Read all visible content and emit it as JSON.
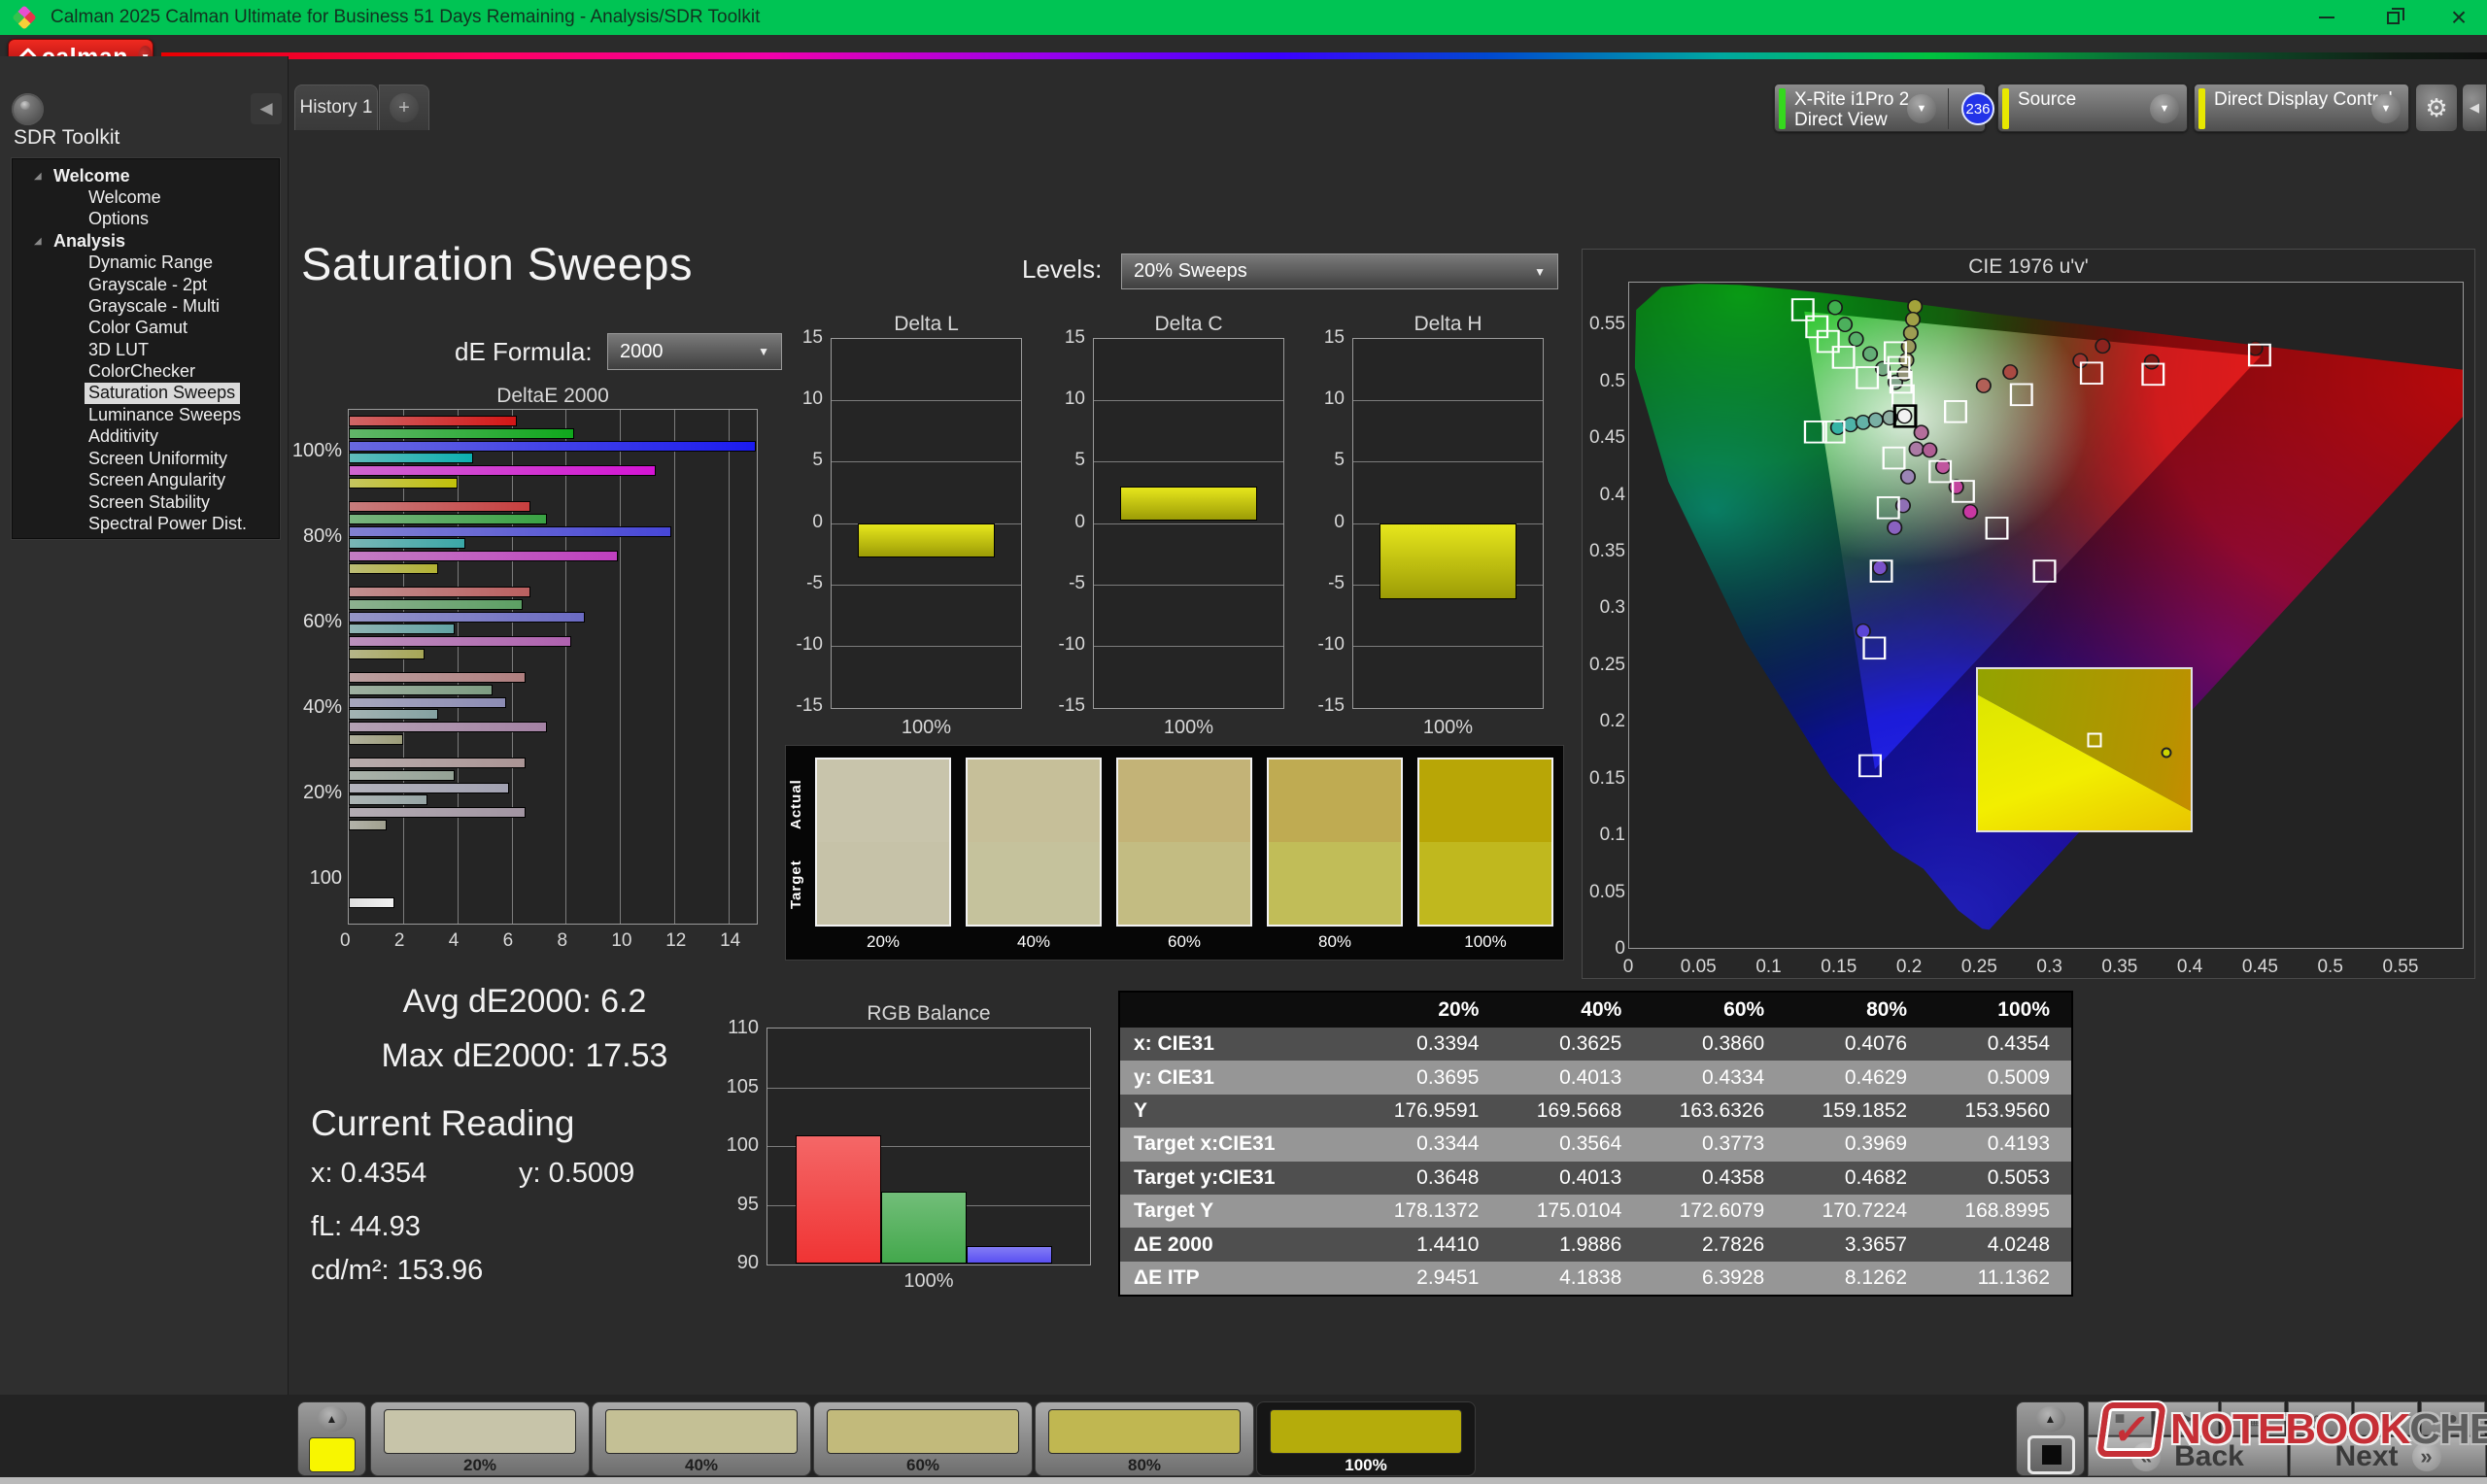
{
  "window": {
    "title": "Calman 2025 Calman Ultimate for Business 51 Days Remaining  - Analysis/SDR Toolkit"
  },
  "brand": {
    "logo_text": "calman"
  },
  "sidebar": {
    "toolkit_label": "SDR Toolkit",
    "tree": [
      {
        "label": "Welcome",
        "type": "group"
      },
      {
        "label": "Welcome",
        "type": "item"
      },
      {
        "label": "Options",
        "type": "item"
      },
      {
        "label": "Analysis",
        "type": "group"
      },
      {
        "label": "Dynamic Range",
        "type": "item"
      },
      {
        "label": "Grayscale - 2pt",
        "type": "item"
      },
      {
        "label": "Grayscale - Multi",
        "type": "item"
      },
      {
        "label": "Color Gamut",
        "type": "item"
      },
      {
        "label": "3D LUT",
        "type": "item"
      },
      {
        "label": "ColorChecker",
        "type": "item"
      },
      {
        "label": "Saturation Sweeps",
        "type": "item",
        "selected": true
      },
      {
        "label": "Luminance Sweeps",
        "type": "item"
      },
      {
        "label": "Additivity",
        "type": "item"
      },
      {
        "label": "Screen Uniformity",
        "type": "item"
      },
      {
        "label": "Screen Angularity",
        "type": "item"
      },
      {
        "label": "Screen Stability",
        "type": "item"
      },
      {
        "label": "Spectral Power Dist.",
        "type": "item"
      }
    ]
  },
  "tabs": {
    "active": "History 1",
    "add_label": "+"
  },
  "topbar": {
    "meter": {
      "line1": "X-Rite i1Pro 2",
      "line2": "Direct View",
      "badge": "236",
      "accent": "#35d81e"
    },
    "source": {
      "label": "Source",
      "accent": "#e8e800"
    },
    "display": {
      "label": "Direct Display Control",
      "accent": "#e8e800"
    },
    "gear_icon": "⚙",
    "collapse_icon": "◀"
  },
  "page": {
    "title": "Saturation Sweeps",
    "levels_label": "Levels:",
    "levels_value": "20% Sweeps",
    "formula_label": "dE Formula:",
    "formula_value": "2000"
  },
  "readout": {
    "avg": "Avg dE2000: 6.2",
    "max": "Max dE2000: 17.53",
    "current_title": "Current Reading",
    "x": "x: 0.4354",
    "y": "y: 0.5009",
    "fl": "fL: 44.93",
    "cdm2": "cd/m²: 153.96"
  },
  "saturation_swatches": {
    "row_labels": [
      "Actual",
      "Target"
    ],
    "levels": [
      "20%",
      "40%",
      "60%",
      "80%",
      "100%"
    ],
    "actual": [
      "#c8c4ab",
      "#c6bf99",
      "#c3b377",
      "#bfab52",
      "#b8a606"
    ],
    "target": [
      "#c6c2a8",
      "#c5c29c",
      "#c3bc82",
      "#c1bd58",
      "#c0b81e"
    ]
  },
  "patch_bar": {
    "preview_color": "#f8f600",
    "cards": [
      {
        "label": "20%",
        "color": "#c7c4a9"
      },
      {
        "label": "40%",
        "color": "#c4c095"
      },
      {
        "label": "60%",
        "color": "#c2ba7b"
      },
      {
        "label": "80%",
        "color": "#c0b751"
      },
      {
        "label": "100%",
        "color": "#b5ac0b"
      }
    ],
    "selected_index": 4
  },
  "toolbar": {
    "icons": [
      {
        "name": "stop-icon",
        "glyph": "■"
      },
      {
        "name": "play-icon",
        "glyph": "▶"
      },
      {
        "name": "grid-icon",
        "glyph": "▦"
      },
      {
        "name": "loop-icon",
        "glyph": "∞"
      },
      {
        "name": "refresh-icon",
        "glyph": "↻"
      },
      {
        "name": "record-icon",
        "glyph": "●"
      }
    ],
    "back": "Back",
    "next": "Next"
  },
  "watermark": {
    "check": "✓",
    "text1": "NOTEBOOK",
    "text2": "CHECK"
  },
  "chart_data": [
    {
      "id": "deltae2000",
      "type": "bar",
      "orientation": "horizontal",
      "title": "DeltaE 2000",
      "xlim": [
        0,
        15
      ],
      "x_ticks": [
        0,
        2,
        4,
        6,
        8,
        10,
        12,
        14
      ],
      "series": [
        "red",
        "green",
        "blue",
        "cyan",
        "magenta",
        "yellow"
      ],
      "groups": [
        {
          "label": "100%",
          "values": [
            6.2,
            8.3,
            17.53,
            4.6,
            11.3,
            4.0
          ],
          "colors": [
            "#d41616",
            "#0fa81c",
            "#1b1bf0",
            "#0cb0b0",
            "#d414d4",
            "#c2c20a"
          ]
        },
        {
          "label": "80%",
          "values": [
            6.7,
            7.3,
            11.9,
            4.3,
            9.9,
            3.3
          ],
          "colors": [
            "#c73f3f",
            "#3aa344",
            "#4747d8",
            "#3aa8a8",
            "#bf3fbf",
            "#b2b233"
          ]
        },
        {
          "label": "60%",
          "values": [
            6.7,
            6.4,
            8.7,
            3.9,
            8.2,
            2.8
          ],
          "colors": [
            "#bb6060",
            "#5c9f63",
            "#6b6bc4",
            "#62a4a4",
            "#b062b0",
            "#a6a656"
          ]
        },
        {
          "label": "40%",
          "values": [
            6.5,
            5.3,
            5.8,
            3.3,
            7.3,
            2.0
          ],
          "colors": [
            "#b07f7f",
            "#7d9c81",
            "#8c8cb4",
            "#84a1a1",
            "#a482a4",
            "#9d9d79"
          ]
        },
        {
          "label": "20%",
          "values": [
            6.5,
            3.9,
            5.9,
            2.9,
            6.5,
            1.4
          ],
          "colors": [
            "#ab9595",
            "#94a295",
            "#a2a2b2",
            "#97a5a5",
            "#a295a2",
            "#a0a08f"
          ]
        },
        {
          "label": "100",
          "values": [
            1.7
          ],
          "colors": [
            "#f2f2f2"
          ]
        }
      ]
    },
    {
      "id": "delta_l",
      "type": "bar",
      "title": "Delta L",
      "ylim": [
        -15,
        15
      ],
      "y_ticks": [
        15,
        10,
        5,
        0,
        -5,
        -10,
        -15
      ],
      "xlabel": "100%",
      "bar": {
        "from": 0,
        "to": -2.8
      },
      "color": "#d4d410"
    },
    {
      "id": "delta_c",
      "type": "bar",
      "title": "Delta C",
      "ylim": [
        -15,
        15
      ],
      "y_ticks": [
        15,
        10,
        5,
        0,
        -5,
        -10,
        -15
      ],
      "xlabel": "100%",
      "bar": {
        "from": 0.2,
        "to": 3.0
      },
      "color": "#d4d410"
    },
    {
      "id": "delta_h",
      "type": "bar",
      "title": "Delta H",
      "ylim": [
        -15,
        15
      ],
      "y_ticks": [
        15,
        10,
        5,
        0,
        -5,
        -10,
        -15
      ],
      "xlabel": "100%",
      "bar": {
        "from": 0,
        "to": -6.2
      },
      "color": "#d4d410"
    },
    {
      "id": "rgb_balance",
      "type": "bar",
      "title": "RGB Balance",
      "ylim": [
        90,
        110
      ],
      "y_ticks": [
        110,
        105,
        100,
        95,
        90
      ],
      "xlabel": "100%",
      "series": [
        {
          "name": "Red",
          "value": 100.9,
          "color": "#f03434"
        },
        {
          "name": "Green",
          "value": 96.1,
          "color": "#43a84c"
        },
        {
          "name": "Blue",
          "value": 91.5,
          "color": "#5a50f2"
        }
      ]
    },
    {
      "id": "cie1976",
      "type": "scatter",
      "title": "CIE 1976 u'v'",
      "xlim": [
        0,
        0.595
      ],
      "ylim": [
        0,
        0.588
      ],
      "x_ticks": [
        0,
        0.05,
        0.1,
        0.15,
        0.2,
        0.25,
        0.3,
        0.35,
        0.4,
        0.45,
        0.5,
        0.55
      ],
      "y_ticks": [
        0,
        0.05,
        0.1,
        0.15,
        0.2,
        0.25,
        0.3,
        0.35,
        0.4,
        0.45,
        0.5,
        0.55
      ],
      "gamut_triangle": [
        [
          0.4507,
          0.5229
        ],
        [
          0.125,
          0.5625
        ],
        [
          0.1754,
          0.1579
        ]
      ],
      "targets": [
        {
          "u": 0.124,
          "v": 0.564
        },
        {
          "u": 0.134,
          "v": 0.549
        },
        {
          "u": 0.142,
          "v": 0.536
        },
        {
          "u": 0.153,
          "v": 0.522
        },
        {
          "u": 0.17,
          "v": 0.504
        },
        {
          "u": 0.19,
          "v": 0.526
        },
        {
          "u": 0.1925,
          "v": 0.513
        },
        {
          "u": 0.194,
          "v": 0.5
        },
        {
          "u": 0.1955,
          "v": 0.488
        },
        {
          "u": 0.197,
          "v": 0.47,
          "current": true
        },
        {
          "u": 0.133,
          "v": 0.456
        },
        {
          "u": 0.146,
          "v": 0.456
        },
        {
          "u": 0.233,
          "v": 0.474
        },
        {
          "u": 0.28,
          "v": 0.489
        },
        {
          "u": 0.33,
          "v": 0.508
        },
        {
          "u": 0.374,
          "v": 0.507
        },
        {
          "u": 0.45,
          "v": 0.524
        },
        {
          "u": 0.222,
          "v": 0.421
        },
        {
          "u": 0.2385,
          "v": 0.4035
        },
        {
          "u": 0.2625,
          "v": 0.371
        },
        {
          "u": 0.2965,
          "v": 0.333
        },
        {
          "u": 0.189,
          "v": 0.433
        },
        {
          "u": 0.185,
          "v": 0.389
        },
        {
          "u": 0.18,
          "v": 0.333
        },
        {
          "u": 0.175,
          "v": 0.265
        },
        {
          "u": 0.172,
          "v": 0.161
        }
      ],
      "measurements": [
        {
          "u": 0.147,
          "v": 0.566,
          "color": "#3fae4e"
        },
        {
          "u": 0.154,
          "v": 0.551,
          "color": "#4cb05c"
        },
        {
          "u": 0.162,
          "v": 0.538,
          "color": "#58b06a"
        },
        {
          "u": 0.172,
          "v": 0.525,
          "color": "#63ad76"
        },
        {
          "u": 0.181,
          "v": 0.512,
          "color": "#74a982"
        },
        {
          "u": 0.19,
          "v": 0.5,
          "color": "#83a68c"
        },
        {
          "u": 0.204,
          "v": 0.567,
          "color": "#a3a33a"
        },
        {
          "u": 0.2025,
          "v": 0.5555,
          "color": "#a0a046"
        },
        {
          "u": 0.201,
          "v": 0.5435,
          "color": "#9d9d52"
        },
        {
          "u": 0.1995,
          "v": 0.5315,
          "color": "#9a9a5e"
        },
        {
          "u": 0.198,
          "v": 0.5195,
          "color": "#979768"
        },
        {
          "u": 0.1965,
          "v": 0.5075,
          "color": "#939377"
        },
        {
          "u": 0.149,
          "v": 0.46,
          "color": "#35b3a5"
        },
        {
          "u": 0.158,
          "v": 0.4625,
          "color": "#4db3a8"
        },
        {
          "u": 0.167,
          "v": 0.4645,
          "color": "#63b1a6"
        },
        {
          "u": 0.176,
          "v": 0.4665,
          "color": "#79afa4"
        },
        {
          "u": 0.186,
          "v": 0.4685,
          "color": "#8fada2"
        },
        {
          "u": 0.1965,
          "v": 0.47,
          "color": "#f2f2f2"
        },
        {
          "u": 0.2085,
          "v": 0.4555,
          "color": "#b46e9b"
        },
        {
          "u": 0.205,
          "v": 0.441,
          "color": "#ab7aa5"
        },
        {
          "u": 0.2145,
          "v": 0.44,
          "color": "#b05e94"
        },
        {
          "u": 0.224,
          "v": 0.4255,
          "color": "#c0559e"
        },
        {
          "u": 0.2335,
          "v": 0.4075,
          "color": "#c4459f"
        },
        {
          "u": 0.2435,
          "v": 0.3855,
          "color": "#c837a2"
        },
        {
          "u": 0.199,
          "v": 0.4165,
          "color": "#9b85b5"
        },
        {
          "u": 0.1955,
          "v": 0.391,
          "color": "#8f6fb5"
        },
        {
          "u": 0.1895,
          "v": 0.3715,
          "color": "#8a62c0"
        },
        {
          "u": 0.179,
          "v": 0.336,
          "color": "#7a52c8"
        },
        {
          "u": 0.167,
          "v": 0.28,
          "color": "#5b45d6"
        },
        {
          "u": 0.253,
          "v": 0.497,
          "color": "#b26057"
        },
        {
          "u": 0.272,
          "v": 0.509,
          "color": "#aa4a42"
        },
        {
          "u": 0.322,
          "v": 0.519,
          "color": "#9c332c"
        },
        {
          "u": 0.338,
          "v": 0.532,
          "color": "#8c231e"
        },
        {
          "u": 0.373,
          "v": 0.518,
          "color": "#7e1a16"
        },
        {
          "u": 0.447,
          "v": 0.53,
          "color": "#6e0f0c"
        }
      ],
      "inset": {
        "square": {
          "fx": 0.55,
          "fy": 0.44
        },
        "circle": {
          "fx": 0.885,
          "fy": 0.52
        }
      }
    },
    {
      "id": "values_table",
      "type": "table",
      "columns": [
        "",
        "20%",
        "40%",
        "60%",
        "80%",
        "100%"
      ],
      "rows": [
        {
          "label": "x: CIE31",
          "values": [
            "0.3394",
            "0.3625",
            "0.3860",
            "0.4076",
            "0.4354"
          ]
        },
        {
          "label": "y: CIE31",
          "values": [
            "0.3695",
            "0.4013",
            "0.4334",
            "0.4629",
            "0.5009"
          ]
        },
        {
          "label": "Y",
          "values": [
            "176.9591",
            "169.5668",
            "163.6326",
            "159.1852",
            "153.9560"
          ]
        },
        {
          "label": "Target x:CIE31",
          "values": [
            "0.3344",
            "0.3564",
            "0.3773",
            "0.3969",
            "0.4193"
          ]
        },
        {
          "label": "Target y:CIE31",
          "values": [
            "0.3648",
            "0.4013",
            "0.4358",
            "0.4682",
            "0.5053"
          ]
        },
        {
          "label": "Target Y",
          "values": [
            "178.1372",
            "175.0104",
            "172.6079",
            "170.7224",
            "168.8995"
          ]
        },
        {
          "label": "ΔE 2000",
          "values": [
            "1.4410",
            "1.9886",
            "2.7826",
            "3.3657",
            "4.0248"
          ]
        },
        {
          "label": "ΔE ITP",
          "values": [
            "2.9451",
            "4.1838",
            "6.3928",
            "8.1262",
            "11.1362"
          ]
        }
      ]
    }
  ]
}
